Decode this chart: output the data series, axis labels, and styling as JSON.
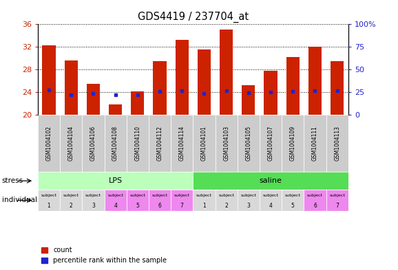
{
  "title": "GDS4419 / 237704_at",
  "samples": [
    "GSM1004102",
    "GSM1004104",
    "GSM1004106",
    "GSM1004108",
    "GSM1004110",
    "GSM1004112",
    "GSM1004114",
    "GSM1004101",
    "GSM1004103",
    "GSM1004105",
    "GSM1004107",
    "GSM1004109",
    "GSM1004111",
    "GSM1004113"
  ],
  "count_values": [
    32.3,
    29.6,
    25.5,
    21.8,
    24.2,
    29.5,
    33.2,
    31.5,
    35.1,
    25.3,
    27.8,
    30.2,
    32.0,
    29.5
  ],
  "percentile_values": [
    24.4,
    23.6,
    23.8,
    23.6,
    23.6,
    24.1,
    24.3,
    23.8,
    24.3,
    23.9,
    24.0,
    24.2,
    24.3,
    24.3
  ],
  "bar_bottom": 20,
  "ylim_left": [
    20,
    36
  ],
  "ylim_right": [
    0,
    100
  ],
  "yticks_left": [
    20,
    24,
    28,
    32,
    36
  ],
  "yticks_right": [
    0,
    25,
    50,
    75,
    100
  ],
  "bar_color": "#cc2200",
  "marker_color": "#2222cc",
  "lps_color": "#bbffbb",
  "saline_color": "#55dd55",
  "subject_lps_colors": [
    "#d8d8d8",
    "#d8d8d8",
    "#d8d8d8",
    "#ee88ee",
    "#ee88ee",
    "#ee88ee",
    "#ee88ee"
  ],
  "subject_saline_colors": [
    "#d8d8d8",
    "#d8d8d8",
    "#d8d8d8",
    "#d8d8d8",
    "#d8d8d8",
    "#ee88ee",
    "#ee88ee"
  ],
  "sample_bg_color": "#cccccc",
  "stress_label": "stress",
  "individual_label": "individual",
  "lps_label": "LPS",
  "saline_label": "saline",
  "legend_count": "count",
  "legend_pct": "percentile rank within the sample"
}
